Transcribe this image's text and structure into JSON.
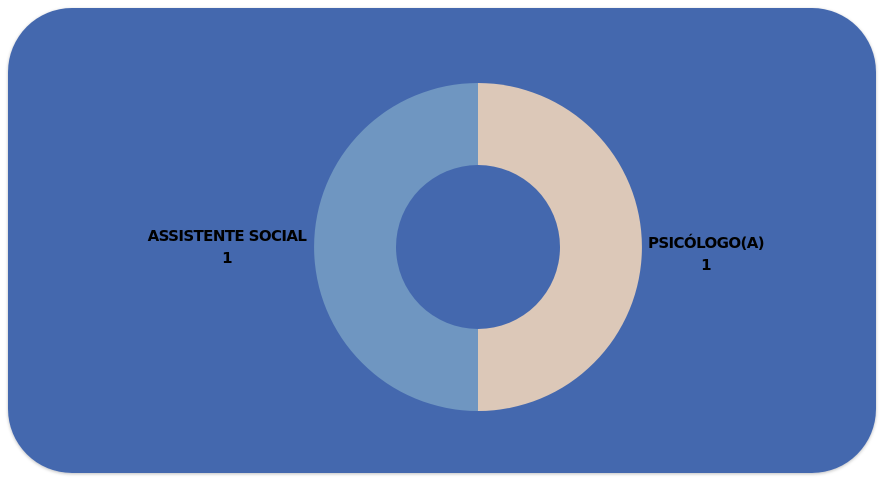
{
  "colors": {
    "background": "#4468AE",
    "hole": "#4468AE"
  },
  "chart_data": {
    "type": "pie",
    "variant": "donut",
    "title": "",
    "categories": [
      "PSICÓLOGO(A)",
      "ASSISTENTE SOCIAL"
    ],
    "values": [
      1,
      1
    ],
    "colors": [
      "#DCC8B8",
      "#6F96C1"
    ]
  }
}
